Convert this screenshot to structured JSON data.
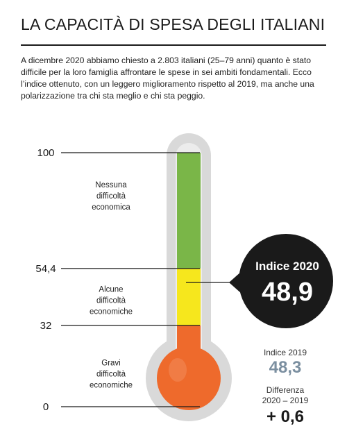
{
  "header": {
    "title": "LA CAPACITÀ DI SPESA DEGLI ITALIANI",
    "intro": "A dicembre 2020 abbiamo chiesto a 2.803 italiani (25–79 anni) quanto è stato difficile per la loro famiglia affrontare le spese in sei ambiti fondamentali. Ecco l’indice ottenuto, con un leggero miglioramento rispetto al 2019, ma anche una polarizzazione tra chi sta meglio e chi sta peggio."
  },
  "chart_data": {
    "type": "thermometer",
    "ylim": [
      0,
      100
    ],
    "ticks": [
      {
        "value": 100,
        "label": "100"
      },
      {
        "value": 54.4,
        "label": "54,4"
      },
      {
        "value": 32,
        "label": "32"
      },
      {
        "value": 0,
        "label": "0"
      }
    ],
    "bands": [
      {
        "from": 54.4,
        "to": 100,
        "color": "#7ab648",
        "label": [
          "Nessuna",
          "difficoltà",
          "economica"
        ]
      },
      {
        "from": 32,
        "to": 54.4,
        "color": "#f6e71d",
        "label": [
          "Alcune",
          "difficoltà",
          "economiche"
        ]
      },
      {
        "from": 0,
        "to": 32,
        "color": "#ee6a2c",
        "label": [
          "Gravi",
          "difficoltà",
          "economiche"
        ]
      }
    ],
    "indicator": {
      "value": 48.9,
      "title": "Indice 2020",
      "value_label": "48,9"
    },
    "comparison": {
      "label_2019": "Indice 2019",
      "value_2019": 48.3,
      "value_2019_label": "48,3",
      "diff_label": [
        "Differenza",
        "2020 – 2019"
      ],
      "diff_value_label": "+ 0,6"
    }
  },
  "colors": {
    "green": "#7ab648",
    "yellow": "#f6e71d",
    "orange": "#ee6a2c",
    "tube": "#d9d9d9",
    "callout": "#1a1a1a",
    "value_2019": "#7b8fa0"
  }
}
